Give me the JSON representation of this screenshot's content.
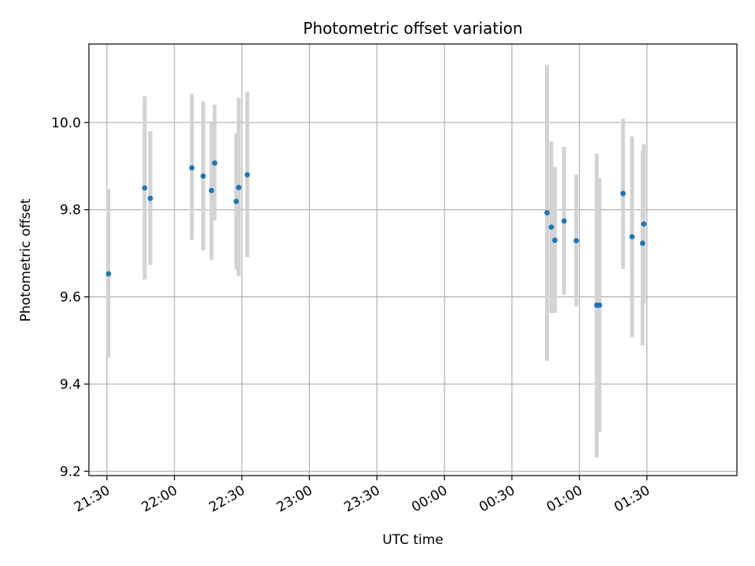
{
  "chart_data": {
    "type": "scatter",
    "title": "Photometric offset variation",
    "xlabel": "UTC time",
    "ylabel": "Photometric offset",
    "x_unit": "minutes since midnight UTC (first day)",
    "xlim": [
      1282,
      1570
    ],
    "ylim": [
      9.19,
      10.18
    ],
    "x_ticks": [
      {
        "value": 1290,
        "label": "21:30"
      },
      {
        "value": 1320,
        "label": "22:00"
      },
      {
        "value": 1350,
        "label": "22:30"
      },
      {
        "value": 1380,
        "label": "23:00"
      },
      {
        "value": 1410,
        "label": "23:30"
      },
      {
        "value": 1440,
        "label": "00:00"
      },
      {
        "value": 1470,
        "label": "00:30"
      },
      {
        "value": 1500,
        "label": "01:00"
      },
      {
        "value": 1530,
        "label": "01:30"
      }
    ],
    "y_ticks": [
      {
        "value": 9.2,
        "label": "9.2"
      },
      {
        "value": 9.4,
        "label": "9.4"
      },
      {
        "value": 9.6,
        "label": "9.6"
      },
      {
        "value": 9.8,
        "label": "9.8"
      },
      {
        "value": 10.0,
        "label": "10.0"
      }
    ],
    "grid": true,
    "colors": {
      "point": "#1f77b4",
      "errorbar": "#d3d3d3",
      "grid": "#b0b0b0"
    },
    "series": [
      {
        "points": [
          {
            "x": 1290.7,
            "y": 9.653,
            "ylow": 9.46,
            "yhigh": 9.848
          },
          {
            "x": 1306.8,
            "y": 9.85,
            "ylow": 9.64,
            "yhigh": 10.06
          },
          {
            "x": 1309.3,
            "y": 9.826,
            "ylow": 9.673,
            "yhigh": 9.98
          },
          {
            "x": 1327.8,
            "y": 9.896,
            "ylow": 9.73,
            "yhigh": 10.066
          },
          {
            "x": 1332.8,
            "y": 9.877,
            "ylow": 9.707,
            "yhigh": 10.048
          },
          {
            "x": 1336.5,
            "y": 9.844,
            "ylow": 9.685,
            "yhigh": 10.003
          },
          {
            "x": 1337.9,
            "y": 9.907,
            "ylow": 9.775,
            "yhigh": 10.041
          },
          {
            "x": 1347.5,
            "y": 9.819,
            "ylow": 9.662,
            "yhigh": 9.975
          },
          {
            "x": 1348.6,
            "y": 9.851,
            "ylow": 9.648,
            "yhigh": 10.056
          },
          {
            "x": 1352.4,
            "y": 9.88,
            "ylow": 9.691,
            "yhigh": 10.07
          },
          {
            "x": 1485.6,
            "y": 9.793,
            "ylow": 9.453,
            "yhigh": 10.132
          },
          {
            "x": 1487.5,
            "y": 9.76,
            "ylow": 9.563,
            "yhigh": 9.957
          },
          {
            "x": 1489.1,
            "y": 9.73,
            "ylow": 9.563,
            "yhigh": 9.898
          },
          {
            "x": 1493.2,
            "y": 9.774,
            "ylow": 9.605,
            "yhigh": 9.944
          },
          {
            "x": 1498.6,
            "y": 9.729,
            "ylow": 9.578,
            "yhigh": 9.88
          },
          {
            "x": 1507.7,
            "y": 9.581,
            "ylow": 9.232,
            "yhigh": 9.929
          },
          {
            "x": 1508.9,
            "y": 9.581,
            "ylow": 9.291,
            "yhigh": 9.872
          },
          {
            "x": 1519.4,
            "y": 9.837,
            "ylow": 9.664,
            "yhigh": 10.009
          },
          {
            "x": 1523.4,
            "y": 9.738,
            "ylow": 9.507,
            "yhigh": 9.968
          },
          {
            "x": 1528.1,
            "y": 9.723,
            "ylow": 9.489,
            "yhigh": 9.935
          },
          {
            "x": 1528.6,
            "y": 9.767,
            "ylow": 9.584,
            "yhigh": 9.95
          }
        ]
      }
    ]
  }
}
